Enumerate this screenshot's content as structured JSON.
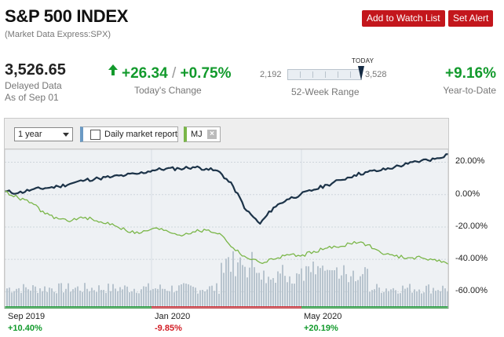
{
  "header": {
    "title": "S&P 500 INDEX",
    "subtitle": "(Market Data Express:SPX)",
    "watch_label": "Add to Watch List",
    "alert_label": "Set Alert"
  },
  "quote": {
    "price": "3,526.65",
    "delayed": "Delayed Data",
    "as_of": "As of Sep 01",
    "change_abs": "+26.34",
    "change_sep": "/",
    "change_pct": "+0.75%",
    "change_label": "Today's Change",
    "range_low": "2,192",
    "range_high": "3,528",
    "range_today": "TODAY",
    "range_label": "52-Week Range",
    "ytd": "+9.16%",
    "ytd_label": "Year-to-Date"
  },
  "toolbar": {
    "period": "1 year",
    "daily_report": "Daily market report",
    "compare_symbol": "MJ"
  },
  "colors": {
    "spx": "#1c3348",
    "mj": "#7ab648",
    "volume": "#b8c4ce",
    "up": "#129a2c",
    "down": "#d21c24",
    "button": "#c3161c"
  },
  "chart_data": {
    "type": "line",
    "y_axis_format": "percent",
    "y_ticks": [
      "20.00%",
      "0.00%",
      "-20.00%",
      "-40.00%",
      "-60.00%"
    ],
    "ylim": [
      -70,
      28
    ],
    "series": [
      {
        "name": "S&P 500 INDEX",
        "values": [
          2,
          1,
          3,
          4,
          5,
          7,
          9,
          10,
          11,
          12,
          13,
          15,
          16,
          16,
          17,
          16,
          14,
          5,
          -10,
          -18,
          -8,
          -3,
          0,
          3,
          6,
          9,
          12,
          14,
          15,
          17,
          19,
          21,
          22,
          25
        ]
      },
      {
        "name": "MJ",
        "values": [
          2,
          -2,
          -5,
          -12,
          -15,
          -16,
          -14,
          -17,
          -18,
          -22,
          -24,
          -21,
          -22,
          -25,
          -23,
          -22,
          -24,
          -33,
          -39,
          -42,
          -40,
          -37,
          -38,
          -35,
          -33,
          -32,
          -29,
          -31,
          -36,
          -38,
          -39,
          -39,
          -40,
          -43
        ]
      }
    ],
    "periods": [
      {
        "label": "Sep 2019",
        "change": "+10.40%",
        "direction": "up"
      },
      {
        "label": "Jan 2020",
        "change": "-9.85%",
        "direction": "down"
      },
      {
        "label": "May 2020",
        "change": "+20.19%",
        "direction": "up"
      }
    ]
  }
}
